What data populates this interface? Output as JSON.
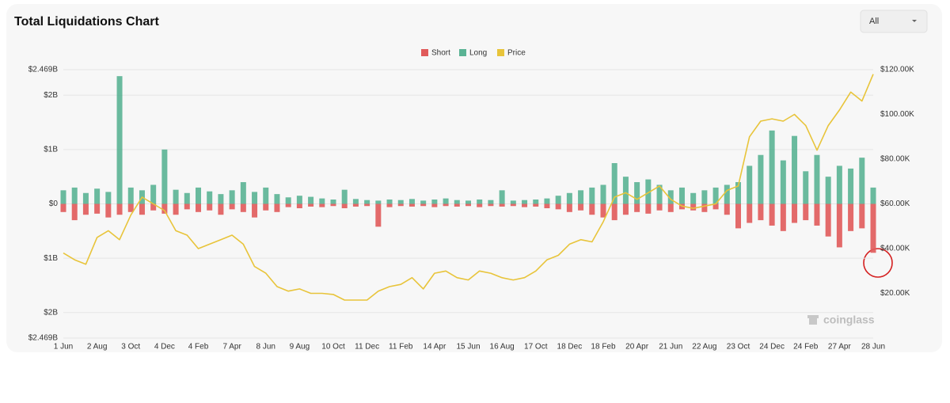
{
  "range_selector": "All",
  "chart_data": {
    "type": "bar",
    "title": "Total Liquidations Chart",
    "watermark": "coinglass",
    "categories": [
      "1 Jun",
      null,
      null,
      "2 Aug",
      null,
      null,
      "3 Oct",
      null,
      null,
      "4 Dec",
      null,
      null,
      "4 Feb",
      null,
      null,
      "7 Apr",
      null,
      null,
      "8 Jun",
      null,
      null,
      "9 Aug",
      null,
      null,
      "10 Oct",
      null,
      null,
      "11 Dec",
      null,
      null,
      "11 Feb",
      null,
      null,
      "14 Apr",
      null,
      null,
      "15 Jun",
      null,
      null,
      "16 Aug",
      null,
      null,
      "17 Oct",
      null,
      null,
      "18 Dec",
      null,
      null,
      "18 Feb",
      null,
      null,
      "20 Apr",
      null,
      null,
      "21 Jun",
      null,
      null,
      "22 Aug",
      null,
      null,
      "23 Oct",
      null,
      null,
      "24 Dec",
      null,
      null,
      "24 Feb",
      null,
      null,
      "27 Apr",
      null,
      null,
      "28 Jun"
    ],
    "series": [
      {
        "name": "Short",
        "color": "#e05a5a",
        "values": [
          -150000000,
          -300000000,
          -200000000,
          -180000000,
          -250000000,
          -200000000,
          -150000000,
          -200000000,
          -120000000,
          -180000000,
          -200000000,
          -100000000,
          -150000000,
          -120000000,
          -200000000,
          -100000000,
          -150000000,
          -250000000,
          -120000000,
          -150000000,
          -60000000,
          -80000000,
          -50000000,
          -60000000,
          -40000000,
          -80000000,
          -50000000,
          -40000000,
          -420000000,
          -60000000,
          -40000000,
          -50000000,
          -40000000,
          -60000000,
          -40000000,
          -50000000,
          -40000000,
          -60000000,
          -40000000,
          -50000000,
          -40000000,
          -60000000,
          -50000000,
          -80000000,
          -100000000,
          -150000000,
          -120000000,
          -200000000,
          -250000000,
          -300000000,
          -200000000,
          -150000000,
          -180000000,
          -120000000,
          -150000000,
          -100000000,
          -120000000,
          -150000000,
          -100000000,
          -200000000,
          -450000000,
          -350000000,
          -300000000,
          -400000000,
          -500000000,
          -350000000,
          -300000000,
          -400000000,
          -600000000,
          -800000000,
          -500000000,
          -450000000,
          -900000000
        ]
      },
      {
        "name": "Long",
        "color": "#5ab394",
        "values": [
          250000000,
          300000000,
          200000000,
          280000000,
          220000000,
          2350000000,
          300000000,
          250000000,
          350000000,
          1000000000,
          260000000,
          200000000,
          300000000,
          230000000,
          180000000,
          250000000,
          400000000,
          220000000,
          300000000,
          180000000,
          120000000,
          150000000,
          130000000,
          100000000,
          80000000,
          260000000,
          90000000,
          70000000,
          60000000,
          80000000,
          70000000,
          90000000,
          60000000,
          80000000,
          100000000,
          70000000,
          60000000,
          80000000,
          70000000,
          250000000,
          60000000,
          70000000,
          80000000,
          100000000,
          150000000,
          200000000,
          250000000,
          300000000,
          350000000,
          750000000,
          500000000,
          400000000,
          450000000,
          350000000,
          250000000,
          300000000,
          200000000,
          250000000,
          300000000,
          350000000,
          400000000,
          700000000,
          900000000,
          1350000000,
          800000000,
          1250000000,
          600000000,
          900000000,
          500000000,
          700000000,
          650000000,
          850000000,
          300000000
        ]
      },
      {
        "name": "Price",
        "color": "#e8c43a",
        "type": "line",
        "axis": "y2",
        "values": [
          38000,
          35000,
          33000,
          45000,
          48000,
          44000,
          55000,
          63000,
          60000,
          57000,
          48000,
          46000,
          40000,
          42000,
          44000,
          46000,
          42000,
          32000,
          29000,
          23000,
          21000,
          22000,
          20000,
          20000,
          19500,
          17000,
          17000,
          17000,
          21000,
          23000,
          24000,
          27000,
          22000,
          29000,
          30000,
          27000,
          26000,
          30000,
          29000,
          27000,
          26000,
          27000,
          30000,
          35000,
          37000,
          42000,
          44000,
          43000,
          52000,
          63000,
          65000,
          62000,
          65000,
          68000,
          62000,
          59000,
          58000,
          59000,
          60000,
          66000,
          68000,
          90000,
          97000,
          98000,
          97000,
          100000,
          95000,
          84000,
          95000,
          102000,
          110000,
          106000,
          118000
        ]
      }
    ],
    "ylim": [
      -2469000000,
      2469000000
    ],
    "yticks": [
      {
        "value": 2469000000,
        "label": "$2.469B"
      },
      {
        "value": 2000000000,
        "label": "$2B"
      },
      {
        "value": 1000000000,
        "label": "$1B"
      },
      {
        "value": 0,
        "label": "$0"
      },
      {
        "value": -1000000000,
        "label": "$1B"
      },
      {
        "value": -2000000000,
        "label": "$2B"
      },
      {
        "value": -2469000000,
        "label": "$2.469B"
      }
    ],
    "y2lim": [
      0,
      120000
    ],
    "y2ticks": [
      {
        "value": 20000,
        "label": "$20.00K"
      },
      {
        "value": 40000,
        "label": "$40.00K"
      },
      {
        "value": 60000,
        "label": "$60.00K"
      },
      {
        "value": 80000,
        "label": "$80.00K"
      },
      {
        "value": 100000,
        "label": "$100.00K"
      },
      {
        "value": 120000,
        "label": "$120.00K"
      }
    ],
    "grid": true,
    "legend": "top"
  }
}
